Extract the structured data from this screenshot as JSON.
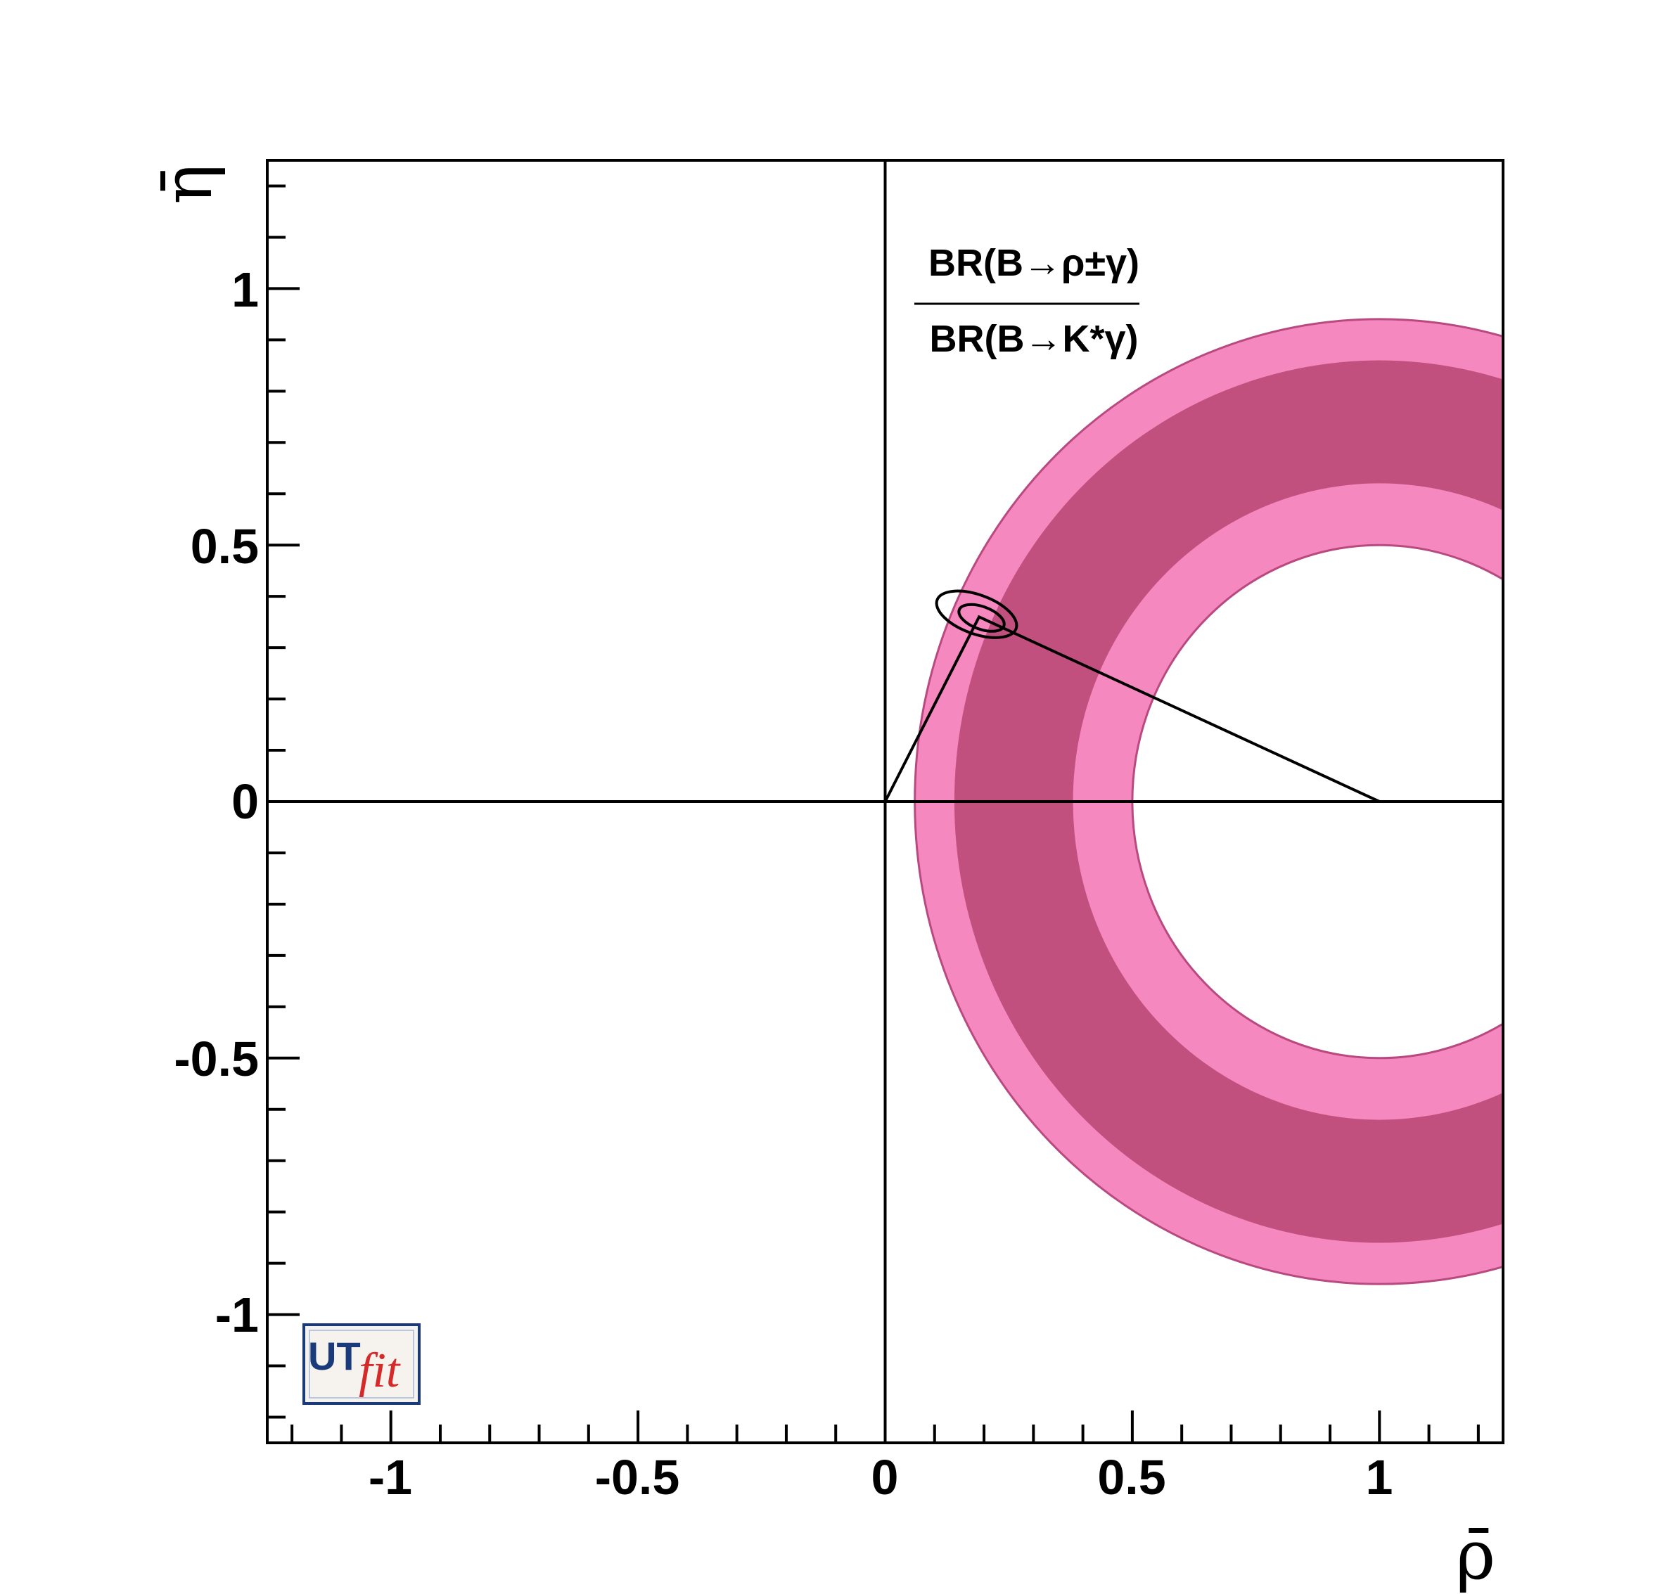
{
  "chart_data": {
    "type": "contour",
    "xlabel": "ρ̄",
    "ylabel": "η̄",
    "xlim": [
      -1.25,
      1.25
    ],
    "ylim": [
      -1.25,
      1.25
    ],
    "xticks": [
      {
        "value": -1,
        "label": "-1"
      },
      {
        "value": -0.5,
        "label": "-0.5"
      },
      {
        "value": 0,
        "label": "0"
      },
      {
        "value": 0.5,
        "label": "0.5"
      },
      {
        "value": 1,
        "label": "1"
      }
    ],
    "yticks": [
      {
        "value": 1,
        "label": "1"
      },
      {
        "value": 0.5,
        "label": "0.5"
      },
      {
        "value": 0,
        "label": "0"
      },
      {
        "value": -0.5,
        "label": "-0.5"
      },
      {
        "value": -1,
        "label": "-1"
      }
    ],
    "annotation": {
      "numerator": "BR(B→ρ±γ)",
      "denominator": "BR(B→K*γ)"
    },
    "constraint_ring": {
      "center": [
        1,
        0
      ],
      "band_95": {
        "r_inner": 0.5,
        "r_outer": 0.94,
        "color": "#f588be"
      },
      "band_68": {
        "r_inner": 0.62,
        "r_outer": 0.86,
        "color": "#c2507f"
      }
    },
    "apex": [
      0.19,
      0.36
    ],
    "apex_contours": {
      "inner": {
        "center": [
          0.195,
          0.358
        ],
        "rx": 0.048,
        "ry": 0.022
      },
      "outer": {
        "center": [
          0.185,
          0.365
        ],
        "rx": 0.085,
        "ry": 0.038
      }
    },
    "triangle": [
      [
        0,
        0
      ],
      [
        1,
        0
      ],
      [
        0.19,
        0.36
      ]
    ],
    "grid": false,
    "logo": "UTfit"
  }
}
